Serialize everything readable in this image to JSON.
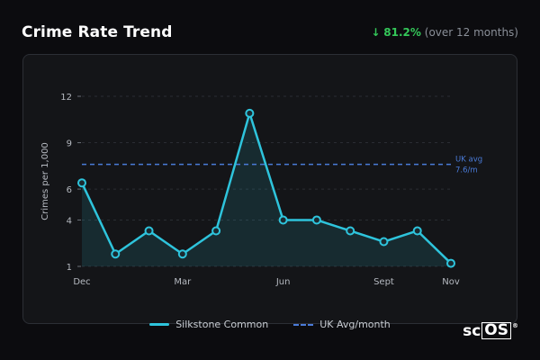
{
  "header": {
    "title": "Crime Rate Trend",
    "change_arrow": "↓",
    "change_value": "81.2%",
    "change_note": "(over 12 months)"
  },
  "colors": {
    "series": "#2ec4dc",
    "reference": "#4a7bd8",
    "positive": "#34c759"
  },
  "chart_data": {
    "type": "area",
    "ylabel": "Crimes per 1,000",
    "y_ticks": [
      1,
      4,
      6,
      9,
      12
    ],
    "ylim": [
      1,
      12
    ],
    "x_tick_labels": [
      "Dec",
      "Mar",
      "Jun",
      "Sept",
      "Nov"
    ],
    "x_tick_indices": [
      0,
      3,
      6,
      9,
      11
    ],
    "series": [
      {
        "name": "Silkstone Common",
        "x": [
          "Dec",
          "Jan",
          "Feb",
          "Mar",
          "Apr",
          "May",
          "Jun",
          "Jul",
          "Aug",
          "Sept",
          "Oct",
          "Nov"
        ],
        "values": [
          6.4,
          1.8,
          3.3,
          1.8,
          3.3,
          10.9,
          4.0,
          4.0,
          3.3,
          2.6,
          3.3,
          1.2
        ]
      }
    ],
    "reference_line": {
      "name": "UK Avg/month",
      "value": 7.6,
      "label_line1": "UK avg",
      "label_line2": "7.6/m"
    },
    "grid": "horizontal dashed"
  },
  "legend": {
    "series_label": "Silkstone Common",
    "reference_label": "UK Avg/month"
  },
  "brand": {
    "prefix": "sc",
    "boxed": "OS",
    "mark": "®"
  }
}
